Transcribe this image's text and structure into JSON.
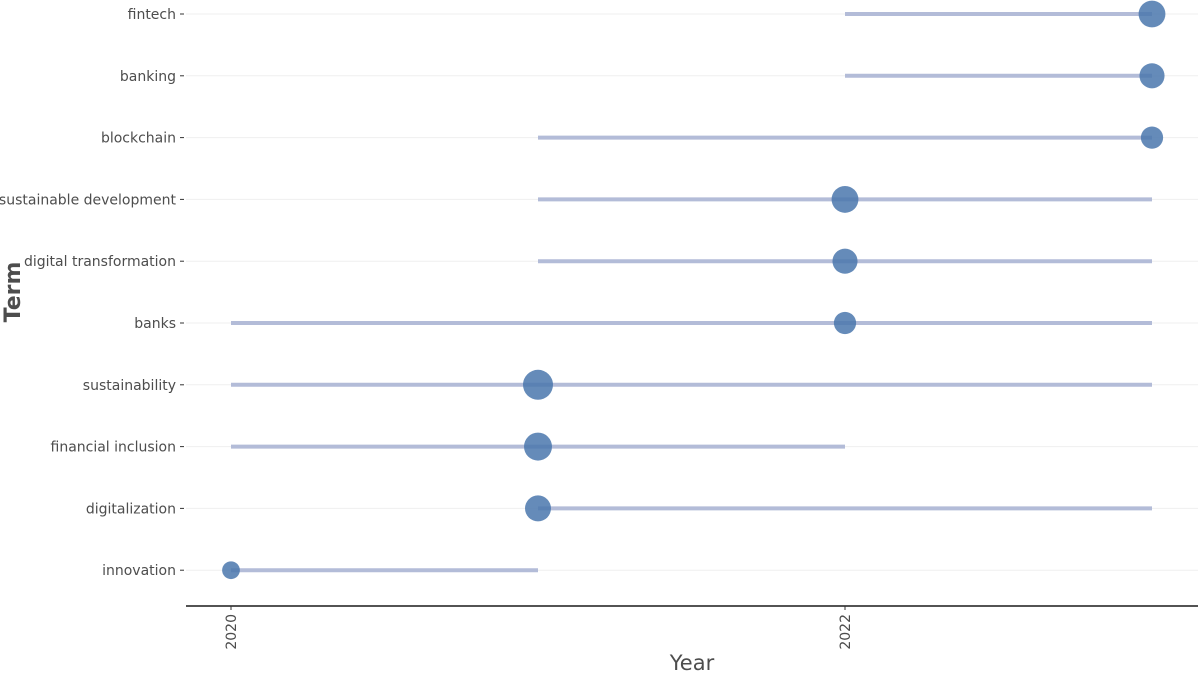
{
  "chart_data": {
    "type": "scatter",
    "title": "",
    "xlabel": "Year",
    "ylabel": "Term",
    "xlim": [
      2019.85,
      2023.1
    ],
    "x_ticks": [
      "2020",
      "2022"
    ],
    "grid": "horizontal",
    "legend": "none",
    "colors": {
      "segment": "#b3bcd8",
      "point": "#4a77ad",
      "axis": "#1a1a1a",
      "grid": "#efefef"
    },
    "terms": [
      {
        "term": "fintech",
        "start": 2022,
        "end": 2023,
        "peak": 2023,
        "size": 0.8
      },
      {
        "term": "banking",
        "start": 2022,
        "end": 2023,
        "peak": 2023,
        "size": 0.7
      },
      {
        "term": "blockchain",
        "start": 2021,
        "end": 2023,
        "peak": 2023,
        "size": 0.55
      },
      {
        "term": "sustainable development",
        "start": 2021,
        "end": 2023,
        "peak": 2022,
        "size": 0.8
      },
      {
        "term": "digital transformation",
        "start": 2021,
        "end": 2023,
        "peak": 2022,
        "size": 0.7
      },
      {
        "term": "banks",
        "start": 2020,
        "end": 2023,
        "peak": 2022,
        "size": 0.55
      },
      {
        "term": "sustainability",
        "start": 2020,
        "end": 2023,
        "peak": 2021,
        "size": 1.0
      },
      {
        "term": "financial inclusion",
        "start": 2020,
        "end": 2022,
        "peak": 2021,
        "size": 0.87
      },
      {
        "term": "digitalization",
        "start": 2021,
        "end": 2023,
        "peak": 2021,
        "size": 0.75
      },
      {
        "term": "innovation",
        "start": 2020,
        "end": 2021,
        "peak": 2020,
        "size": 0.35
      }
    ]
  }
}
